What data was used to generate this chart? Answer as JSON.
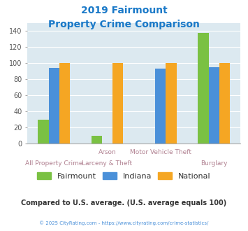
{
  "title_line1": "2019 Fairmount",
  "title_line2": "Property Crime Comparison",
  "series": {
    "Fairmount": [
      29,
      9,
      0,
      138
    ],
    "Indiana": [
      94,
      0,
      93,
      95
    ],
    "National": [
      100,
      100,
      100,
      100
    ]
  },
  "colors": {
    "Fairmount": "#7ac143",
    "Indiana": "#4a90d9",
    "National": "#f5a623"
  },
  "cat_labels_top": [
    "",
    "Arson",
    "Motor Vehicle Theft",
    ""
  ],
  "cat_labels_bot": [
    "All Property Crime",
    "Larceny & Theft",
    "",
    "Burglary"
  ],
  "ylim": [
    0,
    150
  ],
  "yticks": [
    0,
    20,
    40,
    60,
    80,
    100,
    120,
    140
  ],
  "background_color": "#dce9f0",
  "grid_color": "#ffffff",
  "title_color": "#1a79c8",
  "label_color_top": "#b08090",
  "label_color_bot": "#b08090",
  "footer_note": "Compared to U.S. average. (U.S. average equals 100)",
  "footer_copy": "© 2025 CityRating.com - https://www.cityrating.com/crime-statistics/",
  "footer_note_color": "#333333",
  "footer_copy_color": "#4a90d9"
}
